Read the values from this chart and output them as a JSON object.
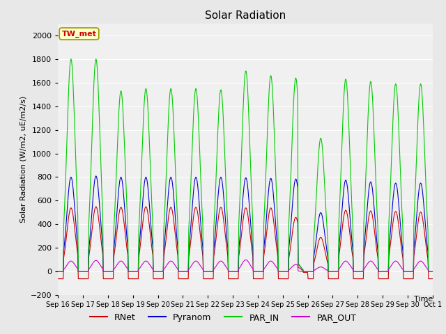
{
  "title": "Solar Radiation",
  "ylabel": "Solar Radiation (W/m2, uE/m2/s)",
  "xlabel": "Time",
  "ylim": [
    -200,
    2100
  ],
  "yticks": [
    -200,
    0,
    200,
    400,
    600,
    800,
    1000,
    1200,
    1400,
    1600,
    1800,
    2000
  ],
  "fig_bg_color": "#e8e8e8",
  "plot_bg_color": "#f0f0f0",
  "legend_bg_color": "#ffffff",
  "station_label": "TW_met",
  "station_box_facecolor": "#ffffcc",
  "station_box_edgecolor": "#999900",
  "line_colors": {
    "RNet": "#cc0000",
    "Pyranom": "#0000cc",
    "PAR_IN": "#00cc00",
    "PAR_OUT": "#cc00cc"
  },
  "n_days": 15,
  "start_day": 16
}
